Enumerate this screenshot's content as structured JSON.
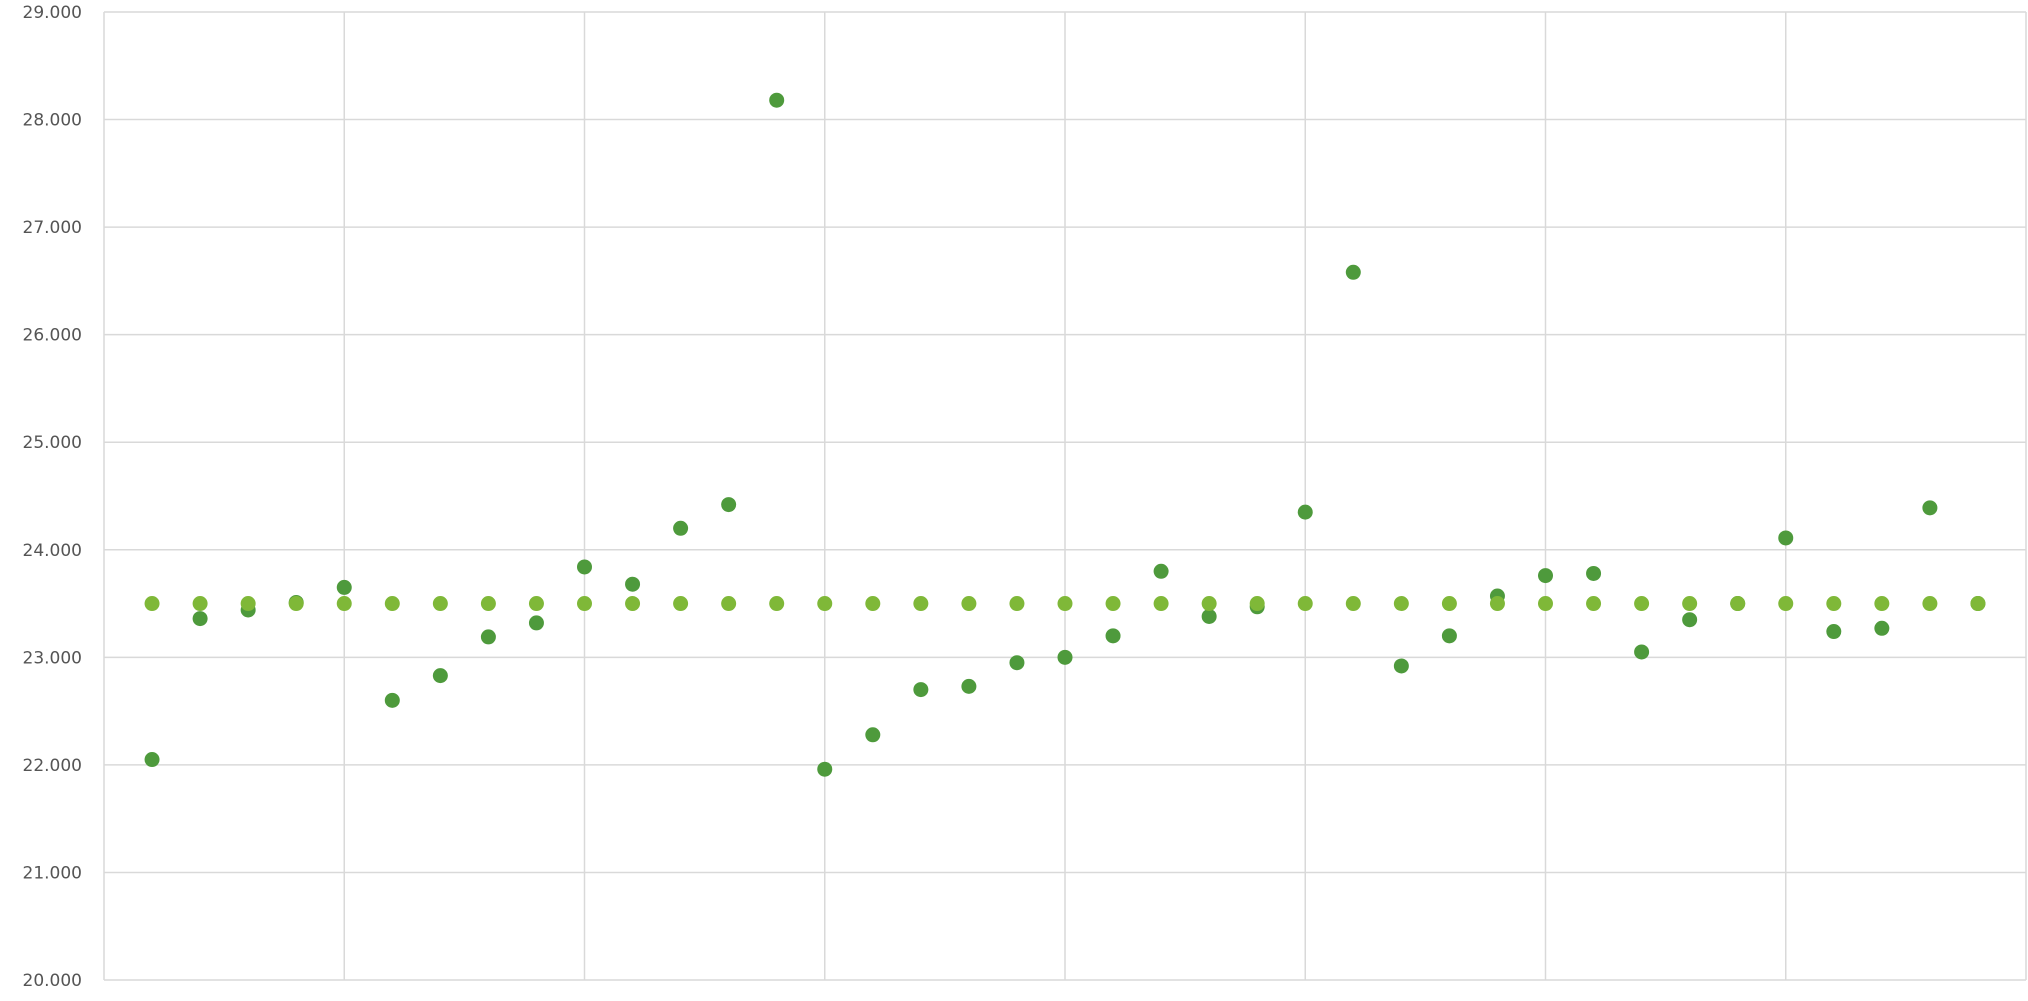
{
  "chart_data": {
    "type": "scatter",
    "title": "",
    "xlabel": "",
    "ylabel": "",
    "ylim": [
      20,
      29
    ],
    "xlim": [
      0,
      40
    ],
    "x_grid_step": 5,
    "y_ticks": [
      {
        "value": 20,
        "label": "20.000"
      },
      {
        "value": 21,
        "label": "21.000"
      },
      {
        "value": 22,
        "label": "22.000"
      },
      {
        "value": 23,
        "label": "23.000"
      },
      {
        "value": 24,
        "label": "24.000"
      },
      {
        "value": 25,
        "label": "25.000"
      },
      {
        "value": 26,
        "label": "26.000"
      },
      {
        "value": 27,
        "label": "27.000"
      },
      {
        "value": 28,
        "label": "28.000"
      },
      {
        "value": 29,
        "label": "29.000"
      }
    ],
    "grid": true,
    "legend": "none",
    "series": [
      {
        "color": "#4e9a3c",
        "x": [
          1,
          2,
          3,
          4,
          5,
          6,
          7,
          8,
          9,
          10,
          11,
          12,
          13,
          14,
          15,
          16,
          17,
          18,
          19,
          20,
          21,
          22,
          23,
          24,
          25,
          26,
          27,
          28,
          29,
          30,
          31,
          32,
          33,
          34,
          35,
          36,
          37,
          38,
          39
        ],
        "values": [
          22.05,
          23.36,
          23.44,
          23.51,
          23.65,
          22.6,
          22.83,
          23.19,
          23.32,
          23.84,
          23.68,
          24.2,
          24.42,
          28.18,
          21.96,
          22.28,
          22.7,
          22.73,
          22.95,
          23.0,
          23.2,
          23.8,
          23.38,
          23.47,
          24.35,
          26.58,
          22.92,
          23.2,
          23.57,
          23.76,
          23.78,
          23.05,
          23.35,
          23.5,
          24.11,
          23.24,
          23.27,
          24.39,
          23.5
        ]
      },
      {
        "color": "#7fb838",
        "x": [
          1,
          2,
          3,
          4,
          5,
          6,
          7,
          8,
          9,
          10,
          11,
          12,
          13,
          14,
          15,
          16,
          17,
          18,
          19,
          20,
          21,
          22,
          23,
          24,
          25,
          26,
          27,
          28,
          29,
          30,
          31,
          32,
          33,
          34,
          35,
          36,
          37,
          38,
          39
        ],
        "values": [
          23.5,
          23.5,
          23.5,
          23.5,
          23.5,
          23.5,
          23.5,
          23.5,
          23.5,
          23.5,
          23.5,
          23.5,
          23.5,
          23.5,
          23.5,
          23.5,
          23.5,
          23.5,
          23.5,
          23.5,
          23.5,
          23.5,
          23.5,
          23.5,
          23.5,
          23.5,
          23.5,
          23.5,
          23.5,
          23.5,
          23.5,
          23.5,
          23.5,
          23.5,
          23.5,
          23.5,
          23.5,
          23.5,
          23.5
        ]
      }
    ]
  }
}
